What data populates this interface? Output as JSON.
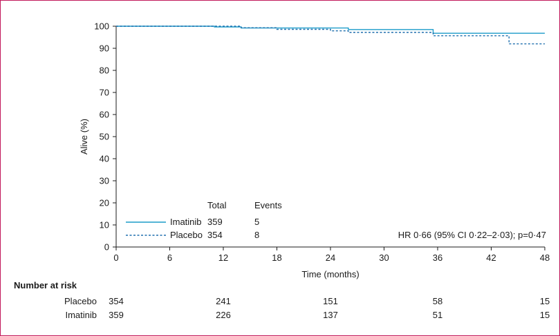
{
  "chart_data": {
    "type": "line",
    "ylabel": "Alive (%)",
    "xlabel": "Time (months)",
    "xlim": [
      0,
      48
    ],
    "ylim": [
      0,
      100
    ],
    "xticks": [
      0,
      6,
      12,
      18,
      24,
      30,
      36,
      42,
      48
    ],
    "yticks": [
      0,
      10,
      20,
      30,
      40,
      50,
      60,
      70,
      80,
      90,
      100
    ],
    "grid": false,
    "series": [
      {
        "name": "Imatinib",
        "style": "solid",
        "color": "#1a9bc9",
        "steps": [
          [
            0,
            100
          ],
          [
            11,
            100
          ],
          [
            11,
            99.7
          ],
          [
            14,
            99.7
          ],
          [
            14,
            99.2
          ],
          [
            26,
            99.2
          ],
          [
            26,
            98.5
          ],
          [
            35.5,
            98.5
          ],
          [
            35.5,
            96.8
          ],
          [
            48,
            96.8
          ]
        ]
      },
      {
        "name": "Placebo",
        "style": "dashed",
        "color": "#1f6fae",
        "steps": [
          [
            0,
            100
          ],
          [
            14,
            100
          ],
          [
            14,
            99.3
          ],
          [
            18,
            99.3
          ],
          [
            18,
            98.6
          ],
          [
            24,
            98.6
          ],
          [
            24,
            97.9
          ],
          [
            26,
            97.9
          ],
          [
            26,
            97.2
          ],
          [
            35.5,
            97.2
          ],
          [
            35.5,
            95.7
          ],
          [
            44,
            95.7
          ],
          [
            44,
            92
          ],
          [
            48,
            92
          ]
        ]
      }
    ],
    "legend": {
      "header_total": "Total",
      "header_events": "Events",
      "rows": [
        {
          "label": "Imatinib",
          "total": "359",
          "events": "5"
        },
        {
          "label": "Placebo",
          "total": "354",
          "events": "8"
        }
      ]
    },
    "annotation": "HR 0·66 (95% CI 0·22–2·03); p=0·47",
    "risk_table": {
      "title": "Number at risk",
      "times": [
        0,
        12,
        24,
        36,
        48
      ],
      "rows": [
        {
          "label": "Placebo",
          "values": [
            "354",
            "241",
            "151",
            "58",
            "15"
          ]
        },
        {
          "label": "Imatinib",
          "values": [
            "359",
            "226",
            "137",
            "51",
            "15"
          ]
        }
      ]
    }
  },
  "colors": {
    "frame": "#c2185b",
    "imatinib": "#1a9bc9",
    "placebo": "#1f6fae",
    "axis": "#1a1a1a"
  }
}
